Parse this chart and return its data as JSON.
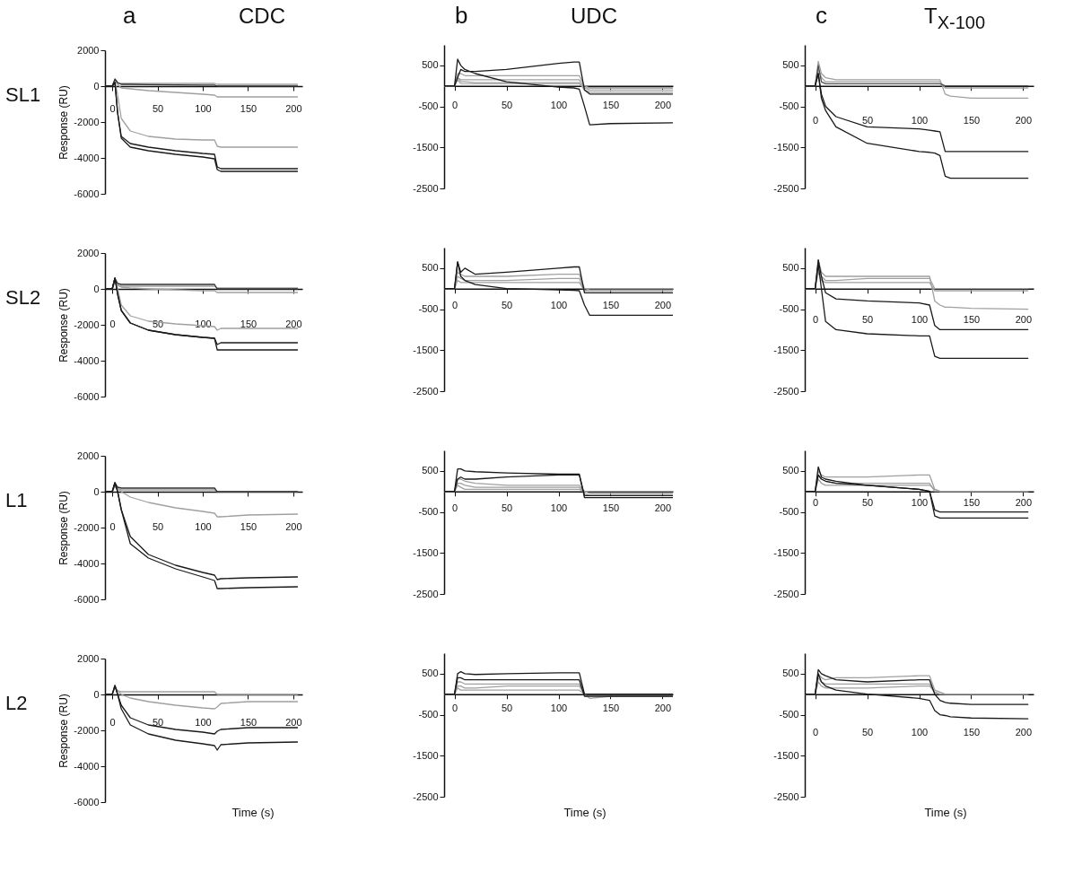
{
  "chart_data": [
    {
      "type": "line",
      "title": "CDC",
      "subtitle": "a",
      "annotations": [
        "SL1"
      ],
      "ylabel": "Response (RU)",
      "x": [
        -8,
        0,
        3,
        6,
        10,
        20,
        40,
        70,
        100,
        113,
        116,
        120,
        150,
        205
      ],
      "xlim": [
        -8,
        210
      ],
      "ylim": [
        -6000,
        2000
      ],
      "xticks": [
        0,
        50,
        100,
        150,
        200
      ],
      "yticks": [
        -6000,
        -4000,
        -2000,
        0,
        2000
      ],
      "series": [
        {
          "color": "#a0a0a0",
          "values": [
            0,
            0,
            300,
            150,
            150,
            150,
            150,
            150,
            150,
            150,
            100,
            100,
            100,
            100
          ]
        },
        {
          "color": "#a0a0a0",
          "values": [
            0,
            0,
            300,
            100,
            -100,
            -150,
            -250,
            -350,
            -450,
            -500,
            -600,
            -600,
            -600,
            -600
          ]
        },
        {
          "color": "#a0a0a0",
          "values": [
            0,
            0,
            300,
            -500,
            -1800,
            -2500,
            -2800,
            -2950,
            -3000,
            -3000,
            -3350,
            -3400,
            -3400,
            -3400
          ]
        },
        {
          "color": "#303030",
          "values": [
            0,
            0,
            400,
            200,
            100,
            100,
            80,
            70,
            60,
            60,
            0,
            0,
            0,
            0
          ]
        },
        {
          "color": "#1a1a1a",
          "values": [
            0,
            0,
            200,
            -1500,
            -2800,
            -3200,
            -3400,
            -3600,
            -3750,
            -3800,
            -4500,
            -4600,
            -4600,
            -4600
          ]
        },
        {
          "color": "#1a1a1a",
          "values": [
            0,
            0,
            200,
            -1500,
            -2900,
            -3400,
            -3600,
            -3800,
            -3950,
            -4050,
            -4650,
            -4750,
            -4750,
            -4750
          ]
        }
      ]
    },
    {
      "type": "line",
      "title": "UDC",
      "subtitle": "b",
      "x": [
        -10,
        0,
        3,
        6,
        10,
        20,
        50,
        100,
        115,
        120,
        125,
        130,
        150,
        210
      ],
      "xlim": [
        -10,
        210
      ],
      "ylim": [
        -2500,
        1000
      ],
      "xticks": [
        0,
        50,
        100,
        150,
        200
      ],
      "yticks": [
        -2500,
        -1500,
        -500,
        500
      ],
      "series": [
        {
          "color": "#b0b0b0",
          "values": [
            0,
            0,
            150,
            50,
            50,
            50,
            50,
            50,
            50,
            50,
            -50,
            -50,
            -50,
            -50
          ]
        },
        {
          "color": "#a0a0a0",
          "values": [
            0,
            0,
            200,
            100,
            100,
            80,
            80,
            80,
            80,
            80,
            -100,
            -150,
            -150,
            -150
          ]
        },
        {
          "color": "#a0a0a0",
          "values": [
            0,
            0,
            200,
            150,
            150,
            150,
            150,
            150,
            150,
            150,
            -50,
            -100,
            -100,
            -100
          ]
        },
        {
          "color": "#a0a0a0",
          "values": [
            0,
            0,
            300,
            300,
            250,
            250,
            250,
            250,
            250,
            250,
            0,
            -50,
            -50,
            -50
          ]
        },
        {
          "color": "#1a1a1a",
          "values": [
            0,
            0,
            200,
            400,
            350,
            350,
            400,
            550,
            580,
            580,
            -100,
            -200,
            -200,
            -200
          ]
        },
        {
          "color": "#1a1a1a",
          "values": [
            0,
            0,
            650,
            500,
            400,
            300,
            100,
            -30,
            -50,
            -80,
            -500,
            -950,
            -920,
            -900
          ]
        }
      ]
    },
    {
      "type": "line",
      "title": "T$_{X-100}$",
      "subtitle": "c",
      "x": [
        -10,
        0,
        3,
        6,
        10,
        20,
        50,
        100,
        110,
        115,
        120,
        125,
        130,
        150,
        205
      ],
      "xlim": [
        -10,
        210
      ],
      "ylim": [
        -2500,
        1000
      ],
      "xticks": [
        0,
        50,
        100,
        150,
        200
      ],
      "yticks": [
        -2500,
        -1500,
        -500,
        500
      ],
      "series": [
        {
          "color": "#a0a0a0",
          "values": [
            0,
            0,
            600,
            300,
            200,
            150,
            150,
            150,
            150,
            150,
            150,
            -200,
            -250,
            -300,
            -300
          ]
        },
        {
          "color": "#a0a0a0",
          "values": [
            0,
            0,
            400,
            200,
            100,
            100,
            100,
            100,
            100,
            100,
            100,
            -50,
            -50,
            -50,
            -50
          ]
        },
        {
          "color": "#505050",
          "values": [
            0,
            0,
            500,
            100,
            50,
            50,
            50,
            50,
            50,
            50,
            50,
            0,
            0,
            0,
            0
          ]
        },
        {
          "color": "#1a1a1a",
          "values": [
            0,
            0,
            300,
            -200,
            -500,
            -750,
            -1000,
            -1050,
            -1080,
            -1100,
            -1120,
            -1600,
            -1600,
            -1600,
            -1600
          ]
        },
        {
          "color": "#1a1a1a",
          "values": [
            0,
            0,
            300,
            -300,
            -600,
            -1000,
            -1400,
            -1600,
            -1620,
            -1640,
            -1700,
            -2200,
            -2250,
            -2250,
            -2250
          ]
        }
      ]
    },
    {
      "type": "line",
      "annotations": [
        "SL2"
      ],
      "ylabel": "Response (RU)",
      "x": [
        -8,
        0,
        3,
        6,
        10,
        20,
        40,
        70,
        100,
        113,
        116,
        120,
        150,
        205
      ],
      "xlim": [
        -8,
        210
      ],
      "ylim": [
        -6000,
        2000
      ],
      "xticks": [
        0,
        50,
        100,
        150,
        200
      ],
      "yticks": [
        -6000,
        -4000,
        -2000,
        0,
        2000
      ],
      "series": [
        {
          "color": "#a0a0a0",
          "values": [
            0,
            0,
            400,
            200,
            150,
            150,
            150,
            150,
            150,
            150,
            50,
            50,
            50,
            50
          ]
        },
        {
          "color": "#a0a0a0",
          "values": [
            0,
            0,
            400,
            200,
            100,
            50,
            0,
            -50,
            -100,
            -100,
            -200,
            -200,
            -200,
            -200
          ]
        },
        {
          "color": "#a0a0a0",
          "values": [
            0,
            0,
            600,
            0,
            -900,
            -1500,
            -1800,
            -1950,
            -2050,
            -2100,
            -2300,
            -2200,
            -2200,
            -2200
          ]
        },
        {
          "color": "#303030",
          "values": [
            0,
            0,
            600,
            300,
            250,
            250,
            250,
            250,
            250,
            250,
            0,
            0,
            0,
            0
          ]
        },
        {
          "color": "#1a1a1a",
          "values": [
            0,
            0,
            600,
            -300,
            -1200,
            -1900,
            -2300,
            -2550,
            -2700,
            -2750,
            -3400,
            -3400,
            -3400,
            -3400
          ]
        },
        {
          "color": "#1a1a1a",
          "values": [
            0,
            0,
            600,
            -300,
            -1200,
            -1900,
            -2300,
            -2550,
            -2700,
            -2750,
            -3100,
            -3000,
            -3000,
            -3000
          ]
        }
      ]
    },
    {
      "type": "line",
      "x": [
        -10,
        0,
        3,
        6,
        10,
        20,
        50,
        100,
        115,
        120,
        125,
        130,
        150,
        210
      ],
      "xlim": [
        -10,
        210
      ],
      "ylim": [
        -2500,
        1000
      ],
      "xticks": [
        0,
        50,
        100,
        150,
        200
      ],
      "yticks": [
        -2500,
        -1500,
        -500,
        500
      ],
      "series": [
        {
          "color": "#a0a0a0",
          "values": [
            0,
            0,
            200,
            150,
            150,
            150,
            150,
            150,
            150,
            150,
            -50,
            -50,
            -50,
            -50
          ]
        },
        {
          "color": "#a0a0a0",
          "values": [
            0,
            0,
            300,
            250,
            200,
            200,
            200,
            250,
            250,
            250,
            -50,
            0,
            0,
            0
          ]
        },
        {
          "color": "#a0a0a0",
          "values": [
            0,
            0,
            400,
            350,
            300,
            300,
            300,
            350,
            350,
            350,
            0,
            0,
            0,
            0
          ]
        },
        {
          "color": "#1a1a1a",
          "values": [
            0,
            0,
            650,
            400,
            500,
            350,
            400,
            500,
            530,
            530,
            -100,
            -100,
            -100,
            -100
          ]
        },
        {
          "color": "#1a1a1a",
          "values": [
            0,
            0,
            650,
            300,
            200,
            100,
            0,
            -30,
            -40,
            -50,
            -400,
            -650,
            -650,
            -650
          ]
        }
      ]
    },
    {
      "type": "line",
      "x": [
        -10,
        0,
        3,
        6,
        10,
        20,
        50,
        100,
        110,
        115,
        120,
        125,
        130,
        150,
        205
      ],
      "xlim": [
        -10,
        210
      ],
      "ylim": [
        -2500,
        1000
      ],
      "xticks": [
        0,
        50,
        100,
        150,
        200
      ],
      "yticks": [
        -2500,
        -1500,
        -500,
        500
      ],
      "series": [
        {
          "color": "#a0a0a0",
          "values": [
            0,
            0,
            700,
            400,
            300,
            300,
            300,
            300,
            300,
            -300,
            -400,
            -450,
            -450,
            -480,
            -500
          ]
        },
        {
          "color": "#a0a0a0",
          "values": [
            0,
            0,
            500,
            300,
            200,
            200,
            250,
            250,
            250,
            0,
            0,
            0,
            0,
            0,
            0
          ]
        },
        {
          "color": "#a0a0a0",
          "values": [
            0,
            0,
            400,
            200,
            150,
            150,
            150,
            150,
            150,
            -50,
            -50,
            -50,
            -50,
            -50,
            -50
          ]
        },
        {
          "color": "#1a1a1a",
          "values": [
            0,
            0,
            700,
            300,
            -100,
            -250,
            -300,
            -350,
            -400,
            -900,
            -1000,
            -1000,
            -1000,
            -1000,
            -1000
          ]
        },
        {
          "color": "#1a1a1a",
          "values": [
            0,
            0,
            600,
            0,
            -800,
            -1000,
            -1100,
            -1150,
            -1150,
            -1650,
            -1700,
            -1700,
            -1700,
            -1700,
            -1700
          ]
        }
      ]
    },
    {
      "type": "line",
      "annotations": [
        "L1"
      ],
      "ylabel": "Response (RU)",
      "x": [
        -8,
        0,
        3,
        6,
        10,
        20,
        40,
        70,
        100,
        113,
        116,
        120,
        150,
        205
      ],
      "xlim": [
        -8,
        210
      ],
      "ylim": [
        -6000,
        2000
      ],
      "xticks": [
        0,
        50,
        100,
        150,
        200
      ],
      "yticks": [
        -6000,
        -4000,
        -2000,
        0,
        2000
      ],
      "series": [
        {
          "color": "#a0a0a0",
          "values": [
            0,
            0,
            300,
            150,
            100,
            100,
            100,
            100,
            100,
            100,
            0,
            0,
            0,
            0
          ]
        },
        {
          "color": "#a0a0a0",
          "values": [
            0,
            0,
            400,
            200,
            0,
            -300,
            -600,
            -900,
            -1100,
            -1200,
            -1400,
            -1400,
            -1300,
            -1250
          ]
        },
        {
          "color": "#303030",
          "values": [
            0,
            0,
            500,
            250,
            200,
            200,
            200,
            200,
            200,
            200,
            0,
            0,
            0,
            0
          ]
        },
        {
          "color": "#1a1a1a",
          "values": [
            0,
            0,
            500,
            0,
            -1000,
            -2500,
            -3500,
            -4100,
            -4500,
            -4650,
            -4900,
            -4850,
            -4800,
            -4750
          ]
        },
        {
          "color": "#1a1a1a",
          "values": [
            0,
            0,
            500,
            0,
            -1000,
            -2900,
            -3700,
            -4300,
            -4750,
            -4950,
            -5400,
            -5400,
            -5350,
            -5300
          ]
        }
      ]
    },
    {
      "type": "line",
      "x": [
        -10,
        0,
        3,
        6,
        10,
        20,
        50,
        100,
        115,
        120,
        125,
        130,
        150,
        210
      ],
      "xlim": [
        -10,
        210
      ],
      "ylim": [
        -2500,
        1000
      ],
      "xticks": [
        0,
        50,
        100,
        150,
        200
      ],
      "yticks": [
        -2500,
        -1500,
        -500,
        500
      ],
      "series": [
        {
          "color": "#a0a0a0",
          "values": [
            0,
            0,
            150,
            100,
            50,
            50,
            50,
            50,
            50,
            50,
            0,
            0,
            0,
            0
          ]
        },
        {
          "color": "#a0a0a0",
          "values": [
            0,
            0,
            200,
            200,
            150,
            100,
            100,
            100,
            100,
            100,
            -50,
            -100,
            -100,
            -100
          ]
        },
        {
          "color": "#a0a0a0",
          "values": [
            0,
            0,
            300,
            300,
            250,
            200,
            150,
            150,
            150,
            150,
            0,
            -50,
            -50,
            -50
          ]
        },
        {
          "color": "#1a1a1a",
          "values": [
            0,
            0,
            300,
            350,
            300,
            300,
            350,
            400,
            400,
            400,
            -100,
            -100,
            -100,
            -100
          ]
        },
        {
          "color": "#1a1a1a",
          "values": [
            0,
            0,
            550,
            550,
            500,
            480,
            450,
            420,
            420,
            420,
            -150,
            -150,
            -150,
            -150
          ]
        }
      ]
    },
    {
      "type": "line",
      "x": [
        -10,
        0,
        3,
        6,
        10,
        20,
        50,
        100,
        110,
        115,
        120,
        125,
        130,
        150,
        205
      ],
      "xlim": [
        -10,
        210
      ],
      "ylim": [
        -2500,
        1000
      ],
      "xticks": [
        0,
        50,
        100,
        150,
        200
      ],
      "yticks": [
        -2500,
        -1500,
        -500,
        500
      ],
      "series": [
        {
          "color": "#a0a0a0",
          "values": [
            0,
            0,
            500,
            400,
            350,
            350,
            350,
            400,
            400,
            50,
            0,
            0,
            0,
            0,
            0
          ]
        },
        {
          "color": "#a0a0a0",
          "values": [
            0,
            0,
            400,
            300,
            250,
            200,
            200,
            200,
            200,
            0,
            0,
            0,
            0,
            0,
            0
          ]
        },
        {
          "color": "#a0a0a0",
          "values": [
            0,
            0,
            300,
            200,
            150,
            150,
            150,
            150,
            150,
            50,
            0,
            0,
            0,
            0,
            0
          ]
        },
        {
          "color": "#1a1a1a",
          "values": [
            0,
            0,
            400,
            300,
            250,
            200,
            150,
            50,
            0,
            -450,
            -500,
            -500,
            -500,
            -500,
            -500
          ]
        },
        {
          "color": "#1a1a1a",
          "values": [
            0,
            0,
            600,
            350,
            300,
            250,
            150,
            50,
            0,
            -600,
            -650,
            -650,
            -650,
            -650,
            -650
          ]
        }
      ]
    },
    {
      "type": "line",
      "annotations": [
        "L2"
      ],
      "ylabel": "Response (RU)",
      "xlabel": "Time (s)",
      "x": [
        -8,
        0,
        3,
        6,
        10,
        20,
        40,
        70,
        100,
        113,
        116,
        120,
        150,
        205
      ],
      "xlim": [
        -8,
        210
      ],
      "ylim": [
        -6000,
        2000
      ],
      "xticks": [
        0,
        50,
        100,
        150,
        200
      ],
      "yticks": [
        -6000,
        -4000,
        -2000,
        0,
        2000
      ],
      "series": [
        {
          "color": "#a0a0a0",
          "values": [
            0,
            0,
            400,
            200,
            150,
            150,
            150,
            150,
            150,
            150,
            0,
            0,
            0,
            0
          ]
        },
        {
          "color": "#a0a0a0",
          "values": [
            0,
            0,
            400,
            200,
            0,
            -200,
            -400,
            -600,
            -750,
            -800,
            -700,
            -500,
            -400,
            -400
          ]
        },
        {
          "color": "#1a1a1a",
          "values": [
            0,
            0,
            500,
            0,
            -600,
            -1300,
            -1700,
            -1950,
            -2100,
            -2200,
            -2050,
            -1950,
            -1850,
            -1850
          ]
        },
        {
          "color": "#1a1a1a",
          "values": [
            0,
            0,
            500,
            0,
            -800,
            -1700,
            -2200,
            -2550,
            -2750,
            -2850,
            -3100,
            -2800,
            -2700,
            -2650
          ]
        }
      ]
    },
    {
      "type": "line",
      "xlabel": "Time (s)",
      "x": [
        -10,
        0,
        3,
        6,
        10,
        20,
        50,
        100,
        115,
        120,
        125,
        130,
        150,
        210
      ],
      "xlim": [
        -10,
        210
      ],
      "ylim": [
        -2500,
        1000
      ],
      "xticks": [
        0,
        50,
        100,
        150,
        200
      ],
      "yticks": [
        -2500,
        -1500,
        -500,
        500
      ],
      "series": [
        {
          "color": "#a0a0a0",
          "values": [
            0,
            0,
            150,
            100,
            100,
            100,
            100,
            100,
            100,
            100,
            0,
            0,
            0,
            0
          ]
        },
        {
          "color": "#a0a0a0",
          "values": [
            0,
            0,
            200,
            200,
            150,
            150,
            200,
            200,
            200,
            200,
            0,
            0,
            0,
            0
          ]
        },
        {
          "color": "#a0a0a0",
          "values": [
            0,
            0,
            300,
            300,
            250,
            250,
            250,
            250,
            250,
            250,
            0,
            -100,
            -50,
            -50
          ]
        },
        {
          "color": "#1a1a1a",
          "values": [
            0,
            0,
            400,
            400,
            350,
            350,
            350,
            350,
            350,
            350,
            -50,
            -50,
            -50,
            -50
          ]
        },
        {
          "color": "#1a1a1a",
          "values": [
            0,
            0,
            500,
            550,
            500,
            480,
            500,
            520,
            520,
            520,
            0,
            0,
            0,
            0
          ]
        }
      ]
    },
    {
      "type": "line",
      "xlabel": "Time (s)",
      "x": [
        -10,
        0,
        3,
        6,
        10,
        20,
        50,
        100,
        110,
        115,
        120,
        125,
        130,
        150,
        205
      ],
      "xlim": [
        -10,
        210
      ],
      "ylim": [
        -2500,
        1000
      ],
      "xticks": [
        0,
        50,
        100,
        150,
        200
      ],
      "yticks": [
        -2500,
        -1500,
        -500,
        500
      ],
      "series": [
        {
          "color": "#a0a0a0",
          "values": [
            0,
            0,
            500,
            400,
            350,
            400,
            400,
            450,
            450,
            100,
            50,
            0,
            0,
            0,
            0
          ]
        },
        {
          "color": "#a0a0a0",
          "values": [
            0,
            0,
            400,
            300,
            250,
            250,
            250,
            250,
            250,
            50,
            0,
            0,
            0,
            0,
            0
          ]
        },
        {
          "color": "#a0a0a0",
          "values": [
            0,
            0,
            300,
            200,
            150,
            150,
            150,
            200,
            200,
            50,
            0,
            0,
            0,
            0,
            0
          ]
        },
        {
          "color": "#1a1a1a",
          "values": [
            0,
            0,
            600,
            500,
            450,
            350,
            300,
            350,
            350,
            0,
            -150,
            -200,
            -220,
            -250,
            -250
          ]
        },
        {
          "color": "#1a1a1a",
          "values": [
            0,
            0,
            500,
            300,
            200,
            100,
            0,
            -100,
            -150,
            -400,
            -500,
            -520,
            -550,
            -580,
            -600
          ]
        }
      ]
    }
  ]
}
